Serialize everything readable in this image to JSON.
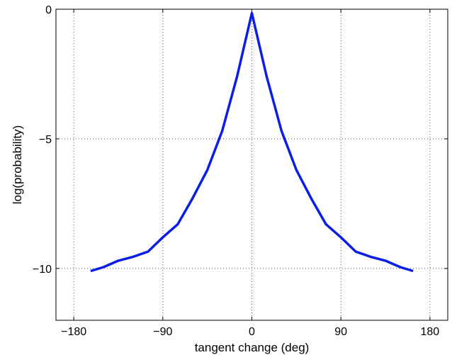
{
  "chart_data": {
    "type": "line",
    "title": "",
    "xlabel": "tangent change (deg)",
    "ylabel": "log(probability)",
    "xlim": [
      -198,
      198
    ],
    "ylim": [
      -12,
      0
    ],
    "xticks": [
      -180,
      -90,
      0,
      90,
      180
    ],
    "yticks": [
      0,
      -5,
      -10
    ],
    "xtick_labels": [
      "−180",
      "−90",
      "0",
      "90",
      "180"
    ],
    "ytick_labels": [
      "0",
      "−5",
      "−10"
    ],
    "grid": true,
    "series_color": "#0a1ee6",
    "series": [
      {
        "x": [
          -163,
          -150,
          -135,
          -120,
          -105,
          -90,
          -75,
          -60,
          -45,
          -30,
          -15,
          0,
          15,
          30,
          45,
          60,
          75,
          90,
          105,
          120,
          135,
          150,
          163
        ],
        "y": [
          -10.1,
          -9.95,
          -9.7,
          -9.55,
          -9.35,
          -8.8,
          -8.3,
          -7.3,
          -6.2,
          -4.7,
          -2.6,
          -0.15,
          -2.6,
          -4.7,
          -6.2,
          -7.3,
          -8.3,
          -8.8,
          -9.35,
          -9.55,
          -9.7,
          -9.95,
          -10.1
        ]
      }
    ]
  }
}
